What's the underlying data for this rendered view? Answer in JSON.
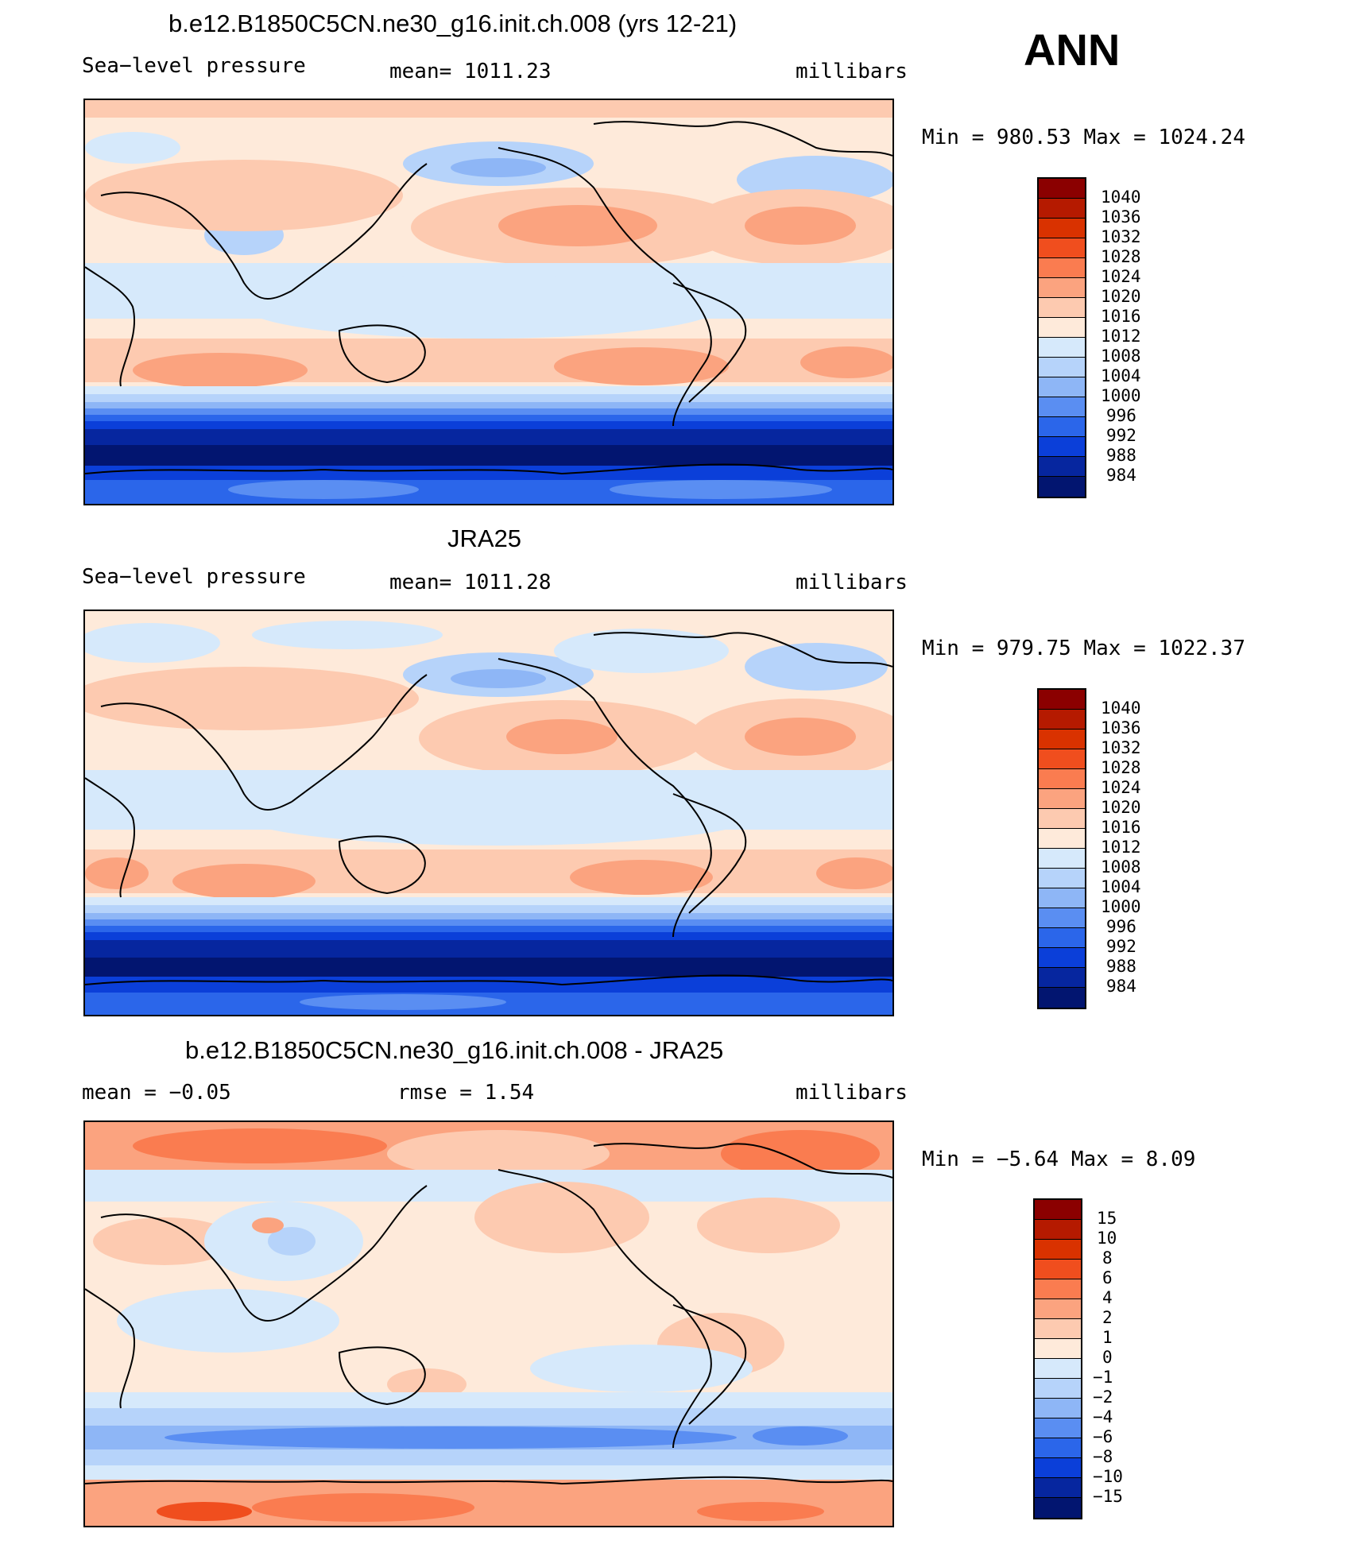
{
  "season_label": "ANN",
  "panels": [
    {
      "title": "b.e12.B1850C5CN.ne30_g16.init.ch.008 (yrs 12-21)",
      "left_label": "Sea−level pressure",
      "center_label": "mean=  1011.23",
      "right_label": "millibars",
      "stats": "Min  =  980.53  Max  =  1024.24",
      "colorbar_levels": [
        "1040",
        "1036",
        "1032",
        "1028",
        "1024",
        "1020",
        "1016",
        "1012",
        "1008",
        "1004",
        "1000",
        "996",
        "992",
        "988",
        "984"
      ],
      "colors": [
        "#8B0000",
        "#B51A00",
        "#D93200",
        "#F04E1E",
        "#FA7C50",
        "#FBA37F",
        "#FDCAB0",
        "#FEEADA",
        "#D6E9FB",
        "#B6D3FA",
        "#8EB6F6",
        "#5A8EF2",
        "#2B66EA",
        "#0B3FD9",
        "#06269F",
        "#021570"
      ]
    },
    {
      "title": "JRA25",
      "left_label": "Sea−level pressure",
      "center_label": "mean=  1011.28",
      "right_label": "millibars",
      "stats": "Min  =  979.75  Max  =  1022.37",
      "colorbar_levels": [
        "1040",
        "1036",
        "1032",
        "1028",
        "1024",
        "1020",
        "1016",
        "1012",
        "1008",
        "1004",
        "1000",
        "996",
        "992",
        "988",
        "984"
      ],
      "colors": [
        "#8B0000",
        "#B51A00",
        "#D93200",
        "#F04E1E",
        "#FA7C50",
        "#FBA37F",
        "#FDCAB0",
        "#FEEADA",
        "#D6E9FB",
        "#B6D3FA",
        "#8EB6F6",
        "#5A8EF2",
        "#2B66EA",
        "#0B3FD9",
        "#06269F",
        "#021570"
      ]
    },
    {
      "title": "b.e12.B1850C5CN.ne30_g16.init.ch.008 - JRA25",
      "left_label": "mean  =    −0.05",
      "center_label": "rmse  =     1.54",
      "right_label": "millibars",
      "stats": "Min  =    −5.64  Max  =      8.09",
      "colorbar_levels": [
        "15",
        "10",
        "8",
        "6",
        "4",
        "2",
        "1",
        "0",
        "−1",
        "−2",
        "−4",
        "−6",
        "−8",
        "−10",
        "−15"
      ],
      "colors": [
        "#8B0000",
        "#B51A00",
        "#D93200",
        "#F04E1E",
        "#FA7C50",
        "#FBA37F",
        "#FDCAB0",
        "#FEEADA",
        "#D6E9FB",
        "#B6D3FA",
        "#8EB6F6",
        "#5A8EF2",
        "#2B66EA",
        "#0B3FD9",
        "#06269F",
        "#021570"
      ]
    }
  ]
}
